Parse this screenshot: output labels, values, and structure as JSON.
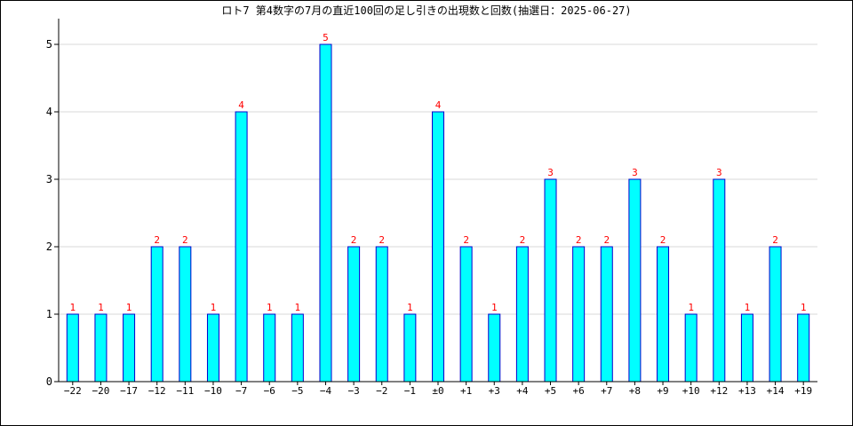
{
  "chart_data": {
    "type": "bar",
    "title": "ロト7 第4数字の7月の直近100回の足し引きの出現数と回数(抽選日：2025-06-27)",
    "xlabel": "",
    "ylabel": "",
    "categories": [
      "−22",
      "−20",
      "−17",
      "−12",
      "−11",
      "−10",
      "−7",
      "−6",
      "−5",
      "−4",
      "−3",
      "−2",
      "−1",
      "±0",
      "+1",
      "+3",
      "+4",
      "+5",
      "+6",
      "+7",
      "+8",
      "+9",
      "+10",
      "+12",
      "+13",
      "+14",
      "+19"
    ],
    "values": [
      1,
      1,
      1,
      2,
      2,
      1,
      4,
      1,
      1,
      5,
      2,
      2,
      1,
      4,
      2,
      1,
      2,
      3,
      2,
      2,
      3,
      2,
      1,
      3,
      1,
      2,
      1
    ],
    "ylim": [
      0,
      5
    ],
    "yticks": [
      0,
      1,
      2,
      3,
      4,
      5
    ],
    "grid": true,
    "legend": "none",
    "colors": {
      "bar_fill": "#00FFFF",
      "bar_stroke": "#0000CC",
      "data_label": "#FF0000",
      "grid": "#D9D9D9",
      "axis": "#000000"
    }
  }
}
